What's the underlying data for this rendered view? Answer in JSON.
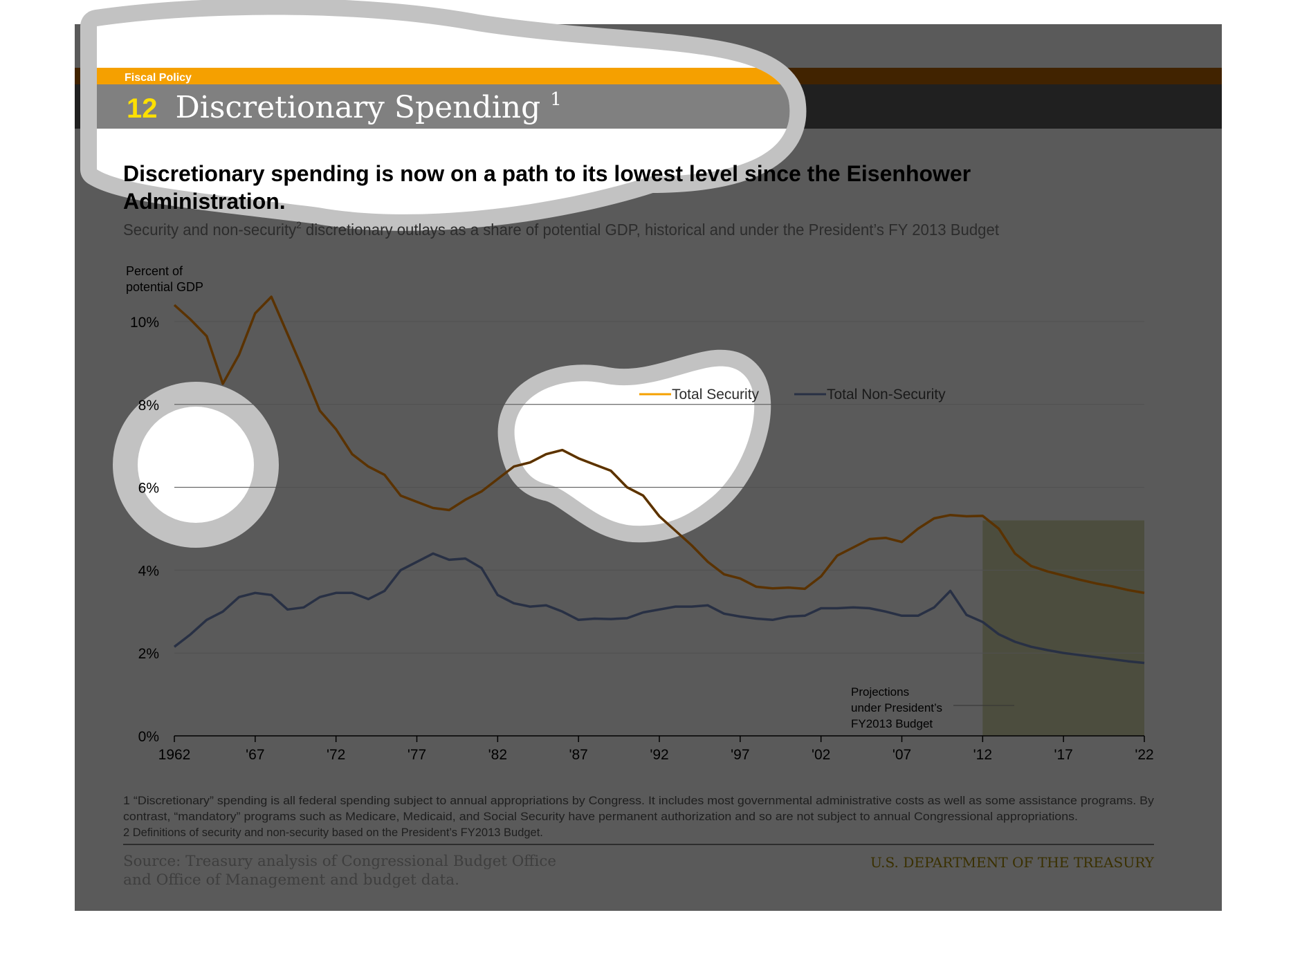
{
  "header": {
    "section": "Fiscal Policy",
    "slide_number": "12",
    "slide_title": "Discretionary Spending",
    "slide_title_sup": "1"
  },
  "headline": {
    "line1": "Discretionary spending is now on a path to its lowest level since the Eisenhower",
    "line2": "Administration."
  },
  "subtitle": {
    "before": "Security and non-security",
    "sup": "2",
    "after": " discretionary outlays as a share of potential GDP, historical and under the President’s FY 2013 Budget"
  },
  "chart_data": {
    "type": "line",
    "ylabel_line1": "Percent of",
    "ylabel_line2": "potential GDP",
    "ylim": [
      0,
      11
    ],
    "yticks": [
      {
        "value": 0,
        "label": "0%"
      },
      {
        "value": 2,
        "label": "2%"
      },
      {
        "value": 4,
        "label": "4%"
      },
      {
        "value": 6,
        "label": "6%"
      },
      {
        "value": 8,
        "label": "8%"
      },
      {
        "value": 10,
        "label": "10%"
      }
    ],
    "xlim": [
      1962,
      2022
    ],
    "xticks": [
      {
        "value": 1962,
        "label": "1962"
      },
      {
        "value": 1967,
        "label": "'67"
      },
      {
        "value": 1972,
        "label": "'72"
      },
      {
        "value": 1977,
        "label": "'77"
      },
      {
        "value": 1982,
        "label": "'82"
      },
      {
        "value": 1987,
        "label": "'87"
      },
      {
        "value": 1992,
        "label": "'92"
      },
      {
        "value": 1997,
        "label": "'97"
      },
      {
        "value": 2002,
        "label": "'02"
      },
      {
        "value": 2007,
        "label": "'07"
      },
      {
        "value": 2012,
        "label": "'12"
      },
      {
        "value": 2017,
        "label": "'17"
      },
      {
        "value": 2022,
        "label": "'22"
      }
    ],
    "grid": true,
    "legend_position": "top-right",
    "x": [
      1962,
      1963,
      1964,
      1965,
      1966,
      1967,
      1968,
      1969,
      1970,
      1971,
      1972,
      1973,
      1974,
      1975,
      1976,
      1977,
      1978,
      1979,
      1980,
      1981,
      1982,
      1983,
      1984,
      1985,
      1986,
      1987,
      1988,
      1989,
      1990,
      1991,
      1992,
      1993,
      1994,
      1995,
      1996,
      1997,
      1998,
      1999,
      2000,
      2001,
      2002,
      2003,
      2004,
      2005,
      2006,
      2007,
      2008,
      2009,
      2010,
      2011,
      2012,
      2013,
      2014,
      2015,
      2016,
      2017,
      2018,
      2019,
      2020,
      2021,
      2022
    ],
    "series": [
      {
        "name": "Total Security",
        "color": "#F5A000",
        "values": [
          10.4,
          10.05,
          9.65,
          8.5,
          9.2,
          10.2,
          10.6,
          9.7,
          8.8,
          7.85,
          7.4,
          6.8,
          6.5,
          6.3,
          5.8,
          5.65,
          5.5,
          5.45,
          5.7,
          5.9,
          6.2,
          6.5,
          6.6,
          6.8,
          6.9,
          6.7,
          6.55,
          6.4,
          6.0,
          5.8,
          5.3,
          4.95,
          4.6,
          4.2,
          3.9,
          3.8,
          3.6,
          3.56,
          3.58,
          3.55,
          3.85,
          4.35,
          4.55,
          4.75,
          4.78,
          4.68,
          5.0,
          5.25,
          5.33,
          5.3,
          5.31,
          5.0,
          4.4,
          4.1,
          3.97,
          3.87,
          3.77,
          3.68,
          3.61,
          3.52,
          3.45
        ]
      },
      {
        "name": "Total Non-Security",
        "color": "#283044",
        "values": [
          2.15,
          2.45,
          2.8,
          3.0,
          3.35,
          3.45,
          3.4,
          3.05,
          3.1,
          3.35,
          3.45,
          3.45,
          3.3,
          3.5,
          4.0,
          4.2,
          4.4,
          4.25,
          4.28,
          4.05,
          3.4,
          3.2,
          3.12,
          3.15,
          3.0,
          2.8,
          2.83,
          2.82,
          2.84,
          2.98,
          3.05,
          3.12,
          3.12,
          3.15,
          2.95,
          2.88,
          2.83,
          2.8,
          2.88,
          2.9,
          3.08,
          3.08,
          3.1,
          3.08,
          3.0,
          2.9,
          2.9,
          3.1,
          3.5,
          2.92,
          2.75,
          2.45,
          2.27,
          2.15,
          2.07,
          2.0,
          1.95,
          1.9,
          1.85,
          1.8,
          1.76
        ]
      }
    ],
    "projection": {
      "start": 2012,
      "end": 2022,
      "label_line1": "Projections",
      "label_line2": "under President’s",
      "label_line3": "FY2013 Budget"
    }
  },
  "footnotes": {
    "note1_line1": "1 “Discretionary” spending is all federal spending subject to annual appropriations by Congress. It includes most governmental administrative costs as well as some assistance programs. By",
    "note1_line2": "contrast, “mandatory” programs such as Medicare, Medicaid, and Social Security have permanent authorization and so are not subject to annual Congressional appropriations.",
    "note2": "2 Definitions of security and non-security based on the President’s FY2013 Budget."
  },
  "footer": {
    "source_line1": "Source: Treasury analysis of Congressional Budget Office",
    "source_line2": "and Office of Management and budget data.",
    "agency": "U.S. DEPARTMENT OF THE TREASURY"
  },
  "colors": {
    "dim_overlay": "#5A5A5A",
    "accent_orange": "#F5A000",
    "projection_fill": "#4C4D3E"
  }
}
